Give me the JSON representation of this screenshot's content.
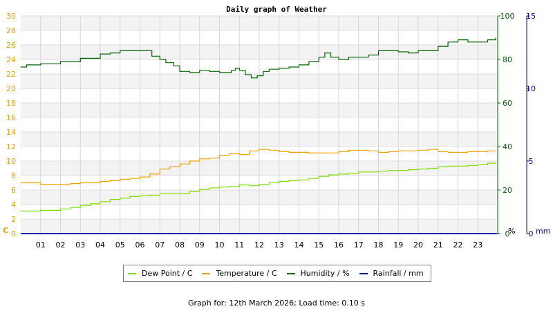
{
  "chart_data": {
    "type": "line",
    "title": "Daily graph of Weather",
    "x_tick_labels": [
      "01",
      "02",
      "03",
      "04",
      "05",
      "06",
      "07",
      "08",
      "09",
      "10",
      "11",
      "12",
      "13",
      "14",
      "15",
      "16",
      "17",
      "18",
      "19",
      "20",
      "21",
      "22",
      "23"
    ],
    "x_range_hours": [
      0,
      24
    ],
    "axes": {
      "left": {
        "unit_label": "C",
        "range": [
          0,
          30
        ],
        "ticks": [
          0,
          2,
          4,
          6,
          8,
          10,
          12,
          14,
          16,
          18,
          20,
          22,
          24,
          26,
          28,
          30
        ],
        "color": "#e8a000"
      },
      "right1": {
        "unit_label": "%",
        "range": [
          0,
          100
        ],
        "ticks": [
          0,
          20,
          40,
          60,
          80,
          100
        ],
        "color": "#006400"
      },
      "right2": {
        "unit_label": "mm",
        "range": [
          0,
          15
        ],
        "ticks": [
          0,
          5,
          10,
          15
        ],
        "color": "#00008b"
      }
    },
    "grid": true,
    "legend_position": "bottom",
    "series": [
      {
        "name": "Dew Point / C",
        "axis": "left",
        "color": "#7fe000",
        "x": [
          0,
          1,
          1.5,
          2,
          2.5,
          3,
          3.5,
          4,
          4.5,
          5,
          5.5,
          6,
          6.5,
          7,
          7.5,
          8,
          8.5,
          9,
          9.5,
          10,
          10.5,
          11,
          11.5,
          12,
          12.5,
          13,
          13.5,
          14,
          14.5,
          15,
          15.5,
          16,
          16.5,
          17,
          17.5,
          18,
          18.5,
          19,
          19.5,
          20,
          20.5,
          21,
          21.5,
          22,
          22.5,
          23,
          23.5,
          23.9
        ],
        "y": [
          3.1,
          3.2,
          3.2,
          3.4,
          3.6,
          3.9,
          4.1,
          4.4,
          4.7,
          4.9,
          5.1,
          5.2,
          5.3,
          5.5,
          5.5,
          5.5,
          5.8,
          6.1,
          6.3,
          6.4,
          6.5,
          6.7,
          6.6,
          6.8,
          7.0,
          7.2,
          7.3,
          7.4,
          7.6,
          7.9,
          8.1,
          8.2,
          8.3,
          8.5,
          8.5,
          8.6,
          8.7,
          8.7,
          8.8,
          8.9,
          9.0,
          9.2,
          9.3,
          9.3,
          9.4,
          9.5,
          9.7,
          9.8
        ]
      },
      {
        "name": "Temperature / C",
        "axis": "left",
        "color": "#f0a000",
        "x": [
          0,
          1,
          1.5,
          2,
          2.5,
          3,
          3.5,
          4,
          4.5,
          5,
          5.5,
          6,
          6.5,
          7,
          7.5,
          8,
          8.5,
          9,
          9.5,
          10,
          10.5,
          11,
          11.5,
          12,
          12.5,
          13,
          13.5,
          14,
          14.5,
          15,
          15.5,
          16,
          16.5,
          17,
          17.5,
          18,
          18.5,
          19,
          19.5,
          20,
          20.5,
          21,
          21.5,
          22,
          22.5,
          23,
          23.5,
          23.9
        ],
        "y": [
          7.0,
          6.8,
          6.8,
          6.8,
          6.9,
          7.0,
          7.0,
          7.2,
          7.3,
          7.5,
          7.6,
          7.8,
          8.2,
          8.9,
          9.2,
          9.6,
          10.0,
          10.3,
          10.4,
          10.8,
          11.0,
          10.9,
          11.4,
          11.6,
          11.5,
          11.3,
          11.2,
          11.2,
          11.1,
          11.1,
          11.1,
          11.3,
          11.5,
          11.5,
          11.4,
          11.2,
          11.3,
          11.4,
          11.4,
          11.5,
          11.6,
          11.3,
          11.2,
          11.2,
          11.3,
          11.3,
          11.4,
          11.4
        ]
      },
      {
        "name": "Humidity / %",
        "axis": "right1",
        "color": "#006400",
        "x": [
          0,
          0.3,
          1,
          1.5,
          2,
          2.5,
          3,
          3.5,
          4,
          4.5,
          5,
          5.5,
          6,
          6.3,
          6.6,
          7,
          7.3,
          7.7,
          8,
          8.5,
          9,
          9.5,
          10,
          10.3,
          10.6,
          10.8,
          11,
          11.3,
          11.6,
          11.9,
          12.2,
          12.5,
          13,
          13.5,
          14,
          14.5,
          15,
          15.3,
          15.6,
          16,
          16.5,
          17,
          17.5,
          18,
          18.5,
          19,
          19.5,
          20,
          20.5,
          20.8,
          21,
          21.5,
          22,
          22.5,
          23,
          23.5,
          23.9
        ],
        "y": [
          76.5,
          77.5,
          78,
          78,
          79,
          79,
          80.5,
          80.5,
          82.5,
          83,
          84,
          84,
          84,
          84,
          81.5,
          80,
          78.5,
          77,
          74.5,
          74,
          75,
          74.5,
          74,
          74,
          75,
          76,
          75,
          73,
          71.5,
          72.5,
          74.5,
          75.5,
          76,
          76.5,
          77.5,
          79,
          81,
          83,
          81,
          80,
          81,
          81,
          82,
          84,
          84,
          83.5,
          83,
          84,
          84,
          84,
          86,
          88,
          89,
          88,
          88,
          89,
          90
        ]
      },
      {
        "name": "Rainfall / mm",
        "axis": "right2",
        "color": "#0000a0",
        "x": [
          0,
          23.9
        ],
        "y": [
          0,
          0
        ]
      }
    ]
  },
  "footer": {
    "text": "Graph for: 12th March 2026; Load time: 0.10 s"
  }
}
